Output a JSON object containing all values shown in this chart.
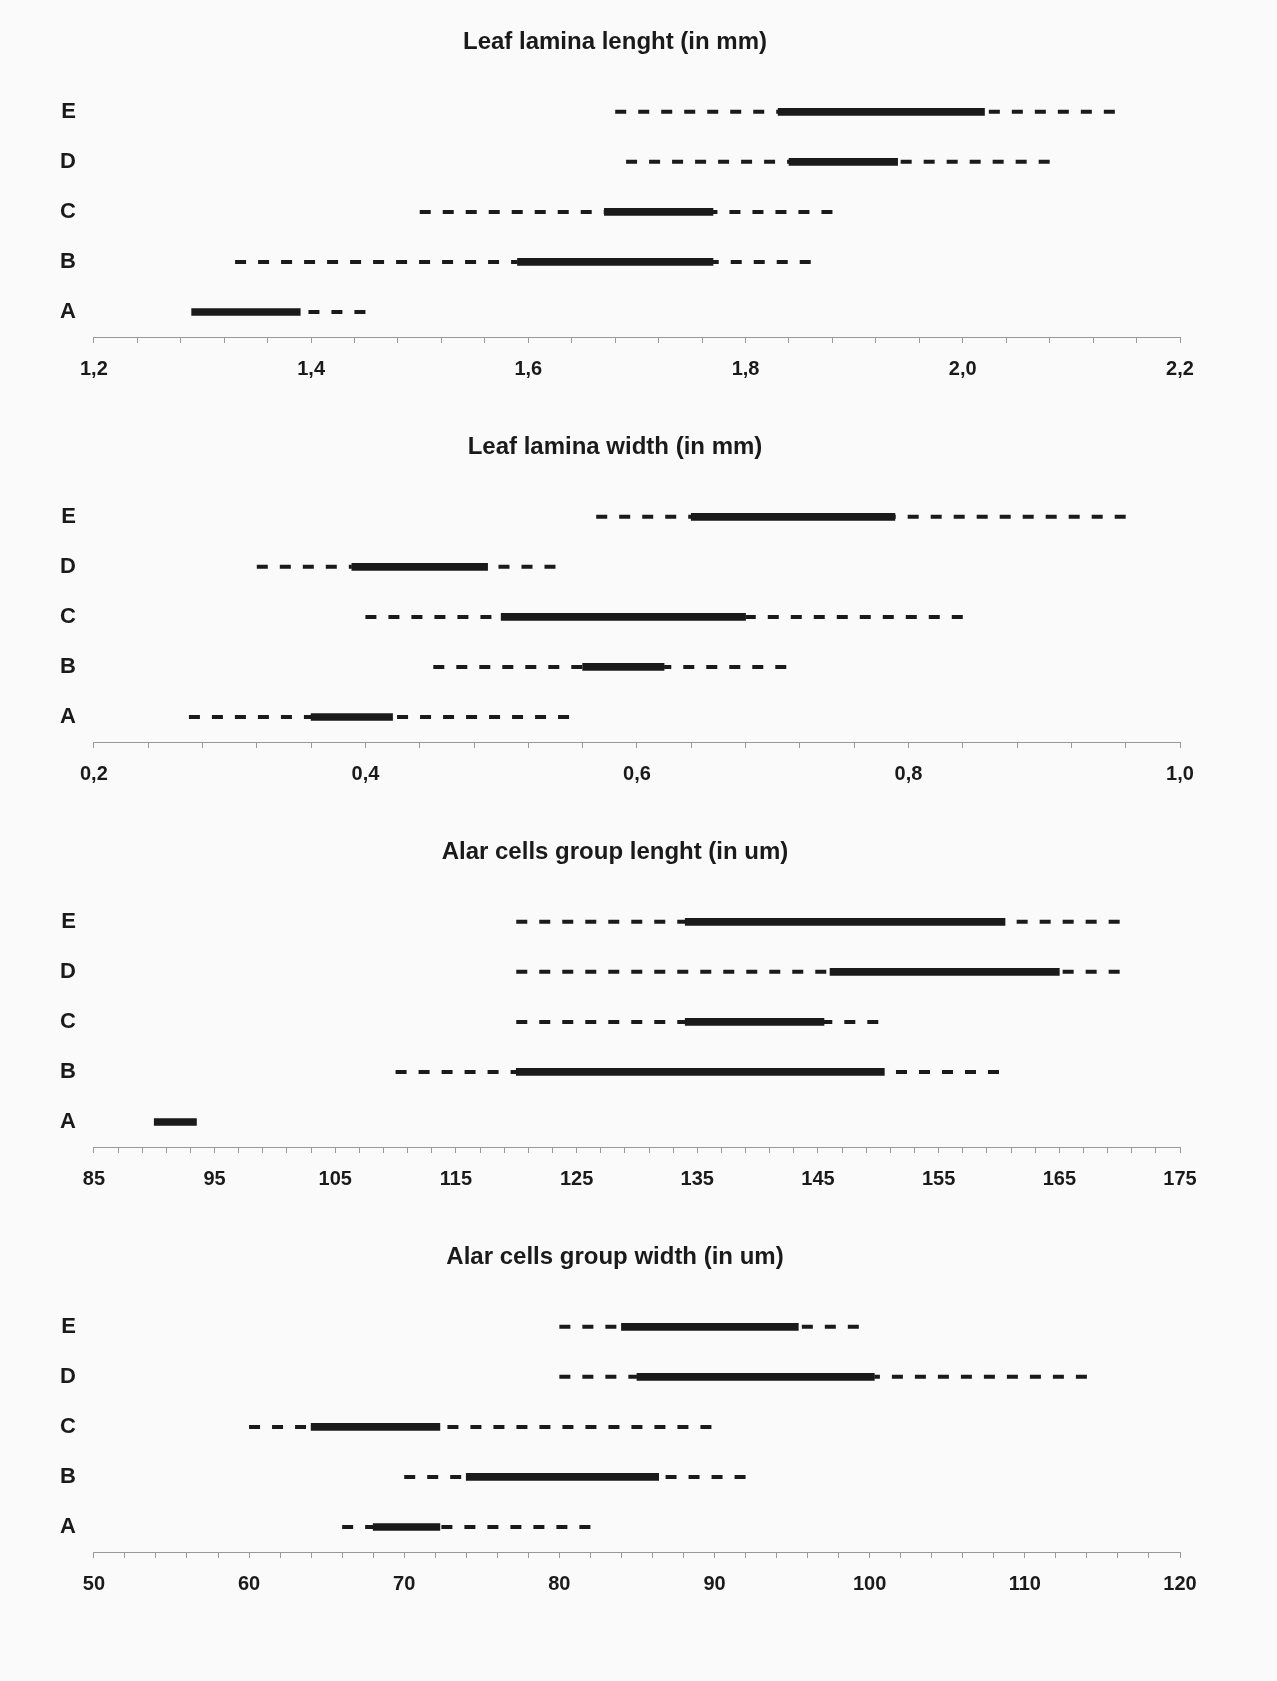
{
  "chart_data": [
    {
      "type": "bar",
      "orientation": "horizontal",
      "title": "Leaf lamina lenght (in mm)",
      "categories": [
        "E",
        "D",
        "C",
        "B",
        "A"
      ],
      "series": [
        {
          "color": "#1a1a1a",
          "base": [
            1.83,
            1.84,
            1.67,
            1.59,
            1.29
          ],
          "values": [
            0.19,
            0.1,
            0.1,
            0.18,
            0.1
          ],
          "errors": [
            [
              1.68,
              2.14
            ],
            [
              1.69,
              2.08
            ],
            [
              1.5,
              1.88
            ],
            [
              1.33,
              1.86
            ],
            [
              1.39,
              1.45
            ]
          ]
        }
      ],
      "xlim": [
        1.2,
        2.2
      ],
      "xticks": [
        {
          "value": 1.2,
          "label": "1,2"
        },
        {
          "value": 1.24,
          "label": null
        },
        {
          "value": 1.28,
          "label": null
        },
        {
          "value": 1.32,
          "label": null
        },
        {
          "value": 1.36,
          "label": null
        },
        {
          "value": 1.4,
          "label": "1,4"
        },
        {
          "value": 1.44,
          "label": null
        },
        {
          "value": 1.48,
          "label": null
        },
        {
          "value": 1.52,
          "label": null
        },
        {
          "value": 1.56,
          "label": null
        },
        {
          "value": 1.6,
          "label": "1,6"
        },
        {
          "value": 1.64,
          "label": null
        },
        {
          "value": 1.68,
          "label": null
        },
        {
          "value": 1.72,
          "label": null
        },
        {
          "value": 1.76,
          "label": null
        },
        {
          "value": 1.8,
          "label": "1,8"
        },
        {
          "value": 1.84,
          "label": null
        },
        {
          "value": 1.88,
          "label": null
        },
        {
          "value": 1.92,
          "label": null
        },
        {
          "value": 1.96,
          "label": null
        },
        {
          "value": 2.0,
          "label": "2,0"
        },
        {
          "value": 2.04,
          "label": null
        },
        {
          "value": 2.08,
          "label": null
        },
        {
          "value": 2.12,
          "label": null
        },
        {
          "value": 2.16,
          "label": null
        },
        {
          "value": 2.2,
          "label": "2,2"
        }
      ]
    },
    {
      "type": "bar",
      "orientation": "horizontal",
      "title": "Leaf lamina width (in mm)",
      "categories": [
        "E",
        "D",
        "C",
        "B",
        "A"
      ],
      "series": [
        {
          "color": "#1a1a1a",
          "base": [
            0.64,
            0.39,
            0.5,
            0.56,
            0.36
          ],
          "values": [
            0.15,
            0.1,
            0.18,
            0.06,
            0.06
          ],
          "errors": [
            [
              0.57,
              0.96
            ],
            [
              0.32,
              0.54
            ],
            [
              0.4,
              0.84
            ],
            [
              0.45,
              0.71
            ],
            [
              0.27,
              0.55
            ]
          ]
        }
      ],
      "xlim": [
        0.2,
        1.0
      ],
      "xticks": [
        {
          "value": 0.2,
          "label": "0,2"
        },
        {
          "value": 0.24,
          "label": null
        },
        {
          "value": 0.28,
          "label": null
        },
        {
          "value": 0.32,
          "label": null
        },
        {
          "value": 0.36,
          "label": null
        },
        {
          "value": 0.4,
          "label": "0,4"
        },
        {
          "value": 0.44,
          "label": null
        },
        {
          "value": 0.48,
          "label": null
        },
        {
          "value": 0.52,
          "label": null
        },
        {
          "value": 0.56,
          "label": null
        },
        {
          "value": 0.6,
          "label": "0,6"
        },
        {
          "value": 0.64,
          "label": null
        },
        {
          "value": 0.68,
          "label": null
        },
        {
          "value": 0.72,
          "label": null
        },
        {
          "value": 0.76,
          "label": null
        },
        {
          "value": 0.8,
          "label": "0,8"
        },
        {
          "value": 0.84,
          "label": null
        },
        {
          "value": 0.88,
          "label": null
        },
        {
          "value": 0.92,
          "label": null
        },
        {
          "value": 0.96,
          "label": null
        },
        {
          "value": 1.0,
          "label": "1,0"
        }
      ]
    },
    {
      "type": "bar",
      "orientation": "horizontal",
      "title": "Alar cells group lenght (in um)",
      "categories": [
        "E",
        "D",
        "C",
        "B",
        "A"
      ],
      "series": [
        {
          "color": "#1a1a1a",
          "base": [
            134,
            146,
            134,
            120,
            90
          ],
          "values": [
            26.5,
            19,
            11.5,
            30.5,
            3.5
          ],
          "errors": [
            [
              120,
              170
            ],
            [
              120,
              170
            ],
            [
              120,
              150
            ],
            [
              110,
              160
            ],
            null
          ]
        }
      ],
      "xlim": [
        85,
        175
      ],
      "xticks": [
        85,
        {
          "value": 87,
          "label": null
        },
        {
          "value": 89,
          "label": null
        },
        {
          "value": 91,
          "label": null
        },
        {
          "value": 93,
          "label": null
        },
        95,
        {
          "value": 97,
          "label": null
        },
        {
          "value": 99,
          "label": null
        },
        {
          "value": 101,
          "label": null
        },
        {
          "value": 103,
          "label": null
        },
        105,
        {
          "value": 107,
          "label": null
        },
        {
          "value": 109,
          "label": null
        },
        {
          "value": 111,
          "label": null
        },
        {
          "value": 113,
          "label": null
        },
        115,
        {
          "value": 117,
          "label": null
        },
        {
          "value": 119,
          "label": null
        },
        {
          "value": 121,
          "label": null
        },
        {
          "value": 123,
          "label": null
        },
        125,
        {
          "value": 127,
          "label": null
        },
        {
          "value": 129,
          "label": null
        },
        {
          "value": 131,
          "label": null
        },
        {
          "value": 133,
          "label": null
        },
        135,
        {
          "value": 137,
          "label": null
        },
        {
          "value": 139,
          "label": null
        },
        {
          "value": 141,
          "label": null
        },
        {
          "value": 143,
          "label": null
        },
        145,
        {
          "value": 147,
          "label": null
        },
        {
          "value": 149,
          "label": null
        },
        {
          "value": 151,
          "label": null
        },
        {
          "value": 153,
          "label": null
        },
        155,
        {
          "value": 157,
          "label": null
        },
        {
          "value": 159,
          "label": null
        },
        {
          "value": 161,
          "label": null
        },
        {
          "value": 163,
          "label": null
        },
        165,
        {
          "value": 167,
          "label": null
        },
        {
          "value": 169,
          "label": null
        },
        {
          "value": 171,
          "label": null
        },
        {
          "value": 173,
          "label": null
        },
        175
      ]
    },
    {
      "type": "bar",
      "orientation": "horizontal",
      "title": "Alar cells group width (in um)",
      "categories": [
        "E",
        "D",
        "C",
        "B",
        "A"
      ],
      "series": [
        {
          "color": "#1a1a1a",
          "base": [
            84,
            85,
            64,
            74,
            68
          ],
          "values": [
            11.4,
            15.3,
            8.3,
            12.4,
            4.3
          ],
          "errors": [
            [
              80,
              99.3
            ],
            [
              80,
              114
            ],
            [
              60,
              89.8
            ],
            [
              70,
              92
            ],
            [
              66,
              82
            ]
          ]
        }
      ],
      "xlim": [
        50,
        120
      ],
      "xticks": [
        50,
        {
          "value": 52,
          "label": null
        },
        {
          "value": 54,
          "label": null
        },
        {
          "value": 56,
          "label": null
        },
        {
          "value": 58,
          "label": null
        },
        60,
        {
          "value": 62,
          "label": null
        },
        {
          "value": 64,
          "label": null
        },
        {
          "value": 66,
          "label": null
        },
        {
          "value": 68,
          "label": null
        },
        70,
        {
          "value": 72,
          "label": null
        },
        {
          "value": 74,
          "label": null
        },
        {
          "value": 76,
          "label": null
        },
        {
          "value": 78,
          "label": null
        },
        80,
        {
          "value": 82,
          "label": null
        },
        {
          "value": 84,
          "label": null
        },
        {
          "value": 86,
          "label": null
        },
        {
          "value": 88,
          "label": null
        },
        90,
        {
          "value": 92,
          "label": null
        },
        {
          "value": 94,
          "label": null
        },
        {
          "value": 96,
          "label": null
        },
        {
          "value": 98,
          "label": null
        },
        100,
        {
          "value": 102,
          "label": null
        },
        {
          "value": 104,
          "label": null
        },
        {
          "value": 106,
          "label": null
        },
        {
          "value": 108,
          "label": null
        },
        110,
        {
          "value": 112,
          "label": null
        },
        {
          "value": 114,
          "label": null
        },
        {
          "value": 116,
          "label": null
        },
        {
          "value": 118,
          "label": null
        },
        120
      ]
    }
  ]
}
